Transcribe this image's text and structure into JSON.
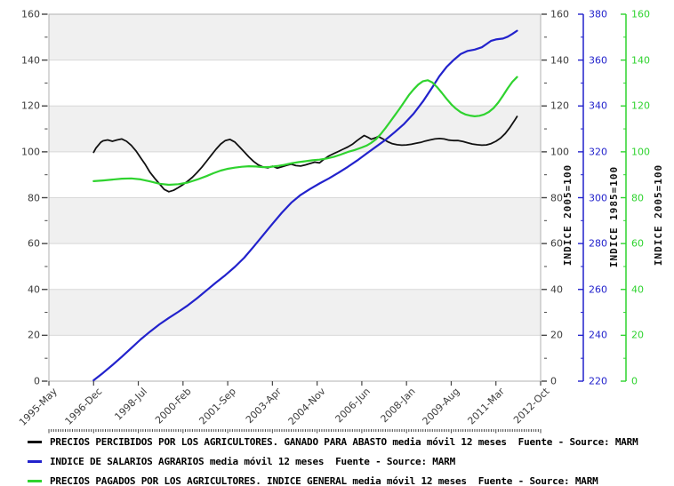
{
  "chart_data": {
    "type": "line",
    "x_axis": {
      "minor_tick_unit": "month",
      "range_months": [
        0,
        209
      ],
      "labels": [
        [
          "1995-May",
          0
        ],
        [
          "1996-Dec",
          19
        ],
        [
          "1998-Jul",
          38
        ],
        [
          "2000-Feb",
          57
        ],
        [
          "2001-Sep",
          76
        ],
        [
          "2003-Apr",
          95
        ],
        [
          "2004-Nov",
          114
        ],
        [
          "2006-Jun",
          133
        ],
        [
          "2008-Jan",
          152
        ],
        [
          "2009-Aug",
          171
        ],
        [
          "2011-Mar",
          190
        ],
        [
          "2012-Oct",
          209
        ]
      ]
    },
    "y_axes": [
      {
        "id": "left",
        "side": "left",
        "title": "",
        "min": 0,
        "max": 160,
        "ticks": [
          0,
          20,
          40,
          60,
          80,
          100,
          120,
          140,
          160
        ],
        "color": "#3c3c3c"
      },
      {
        "id": "right_black",
        "side": "right",
        "title": "INDICE 2005=100",
        "min": 0,
        "max": 160,
        "ticks": [
          0,
          20,
          40,
          60,
          80,
          100,
          120,
          140,
          160
        ],
        "color": "#3c3c3c"
      },
      {
        "id": "right_blue",
        "side": "right",
        "title": "INDICE 1985=100",
        "min": 220,
        "max": 380,
        "ticks": [
          220,
          240,
          260,
          280,
          300,
          320,
          340,
          360,
          380
        ],
        "color": "#2222cc"
      },
      {
        "id": "right_green",
        "side": "right",
        "title": "INDICE 2005=100",
        "min": 0,
        "max": 160,
        "ticks": [
          0,
          20,
          40,
          60,
          80,
          100,
          120,
          140,
          160
        ],
        "color": "#2fd32f"
      }
    ],
    "plot_style": {
      "background": "#ffffff",
      "band_color": "#f0f0f0",
      "band_ranges": [
        [
          20,
          40
        ],
        [
          60,
          80
        ],
        [
          100,
          120
        ],
        [
          140,
          160
        ]
      ],
      "grid_color": "#d8d8d8",
      "border_color": "#b0b0b0",
      "tick_color": "#444444"
    },
    "series": [
      {
        "name": "PRECIOS PERCIBIDOS POR LOS AGRICULTORES. GANADO PARA ABASTO media móvil 12 meses  Fuente - Source: MARM",
        "color": "#111111",
        "axis": "left",
        "width": 1.8,
        "points": [
          [
            19,
            99.8
          ],
          [
            20,
            101.6
          ],
          [
            21,
            102.9
          ],
          [
            22,
            104.1
          ],
          [
            23,
            104.8
          ],
          [
            25,
            105.2
          ],
          [
            27,
            104.6
          ],
          [
            29,
            105.2
          ],
          [
            31,
            105.6
          ],
          [
            33,
            104.6
          ],
          [
            35,
            102.8
          ],
          [
            37,
            100.4
          ],
          [
            39,
            97.4
          ],
          [
            41,
            94.4
          ],
          [
            43,
            91.0
          ],
          [
            45,
            88.4
          ],
          [
            47,
            86.0
          ],
          [
            49,
            83.6
          ],
          [
            51,
            82.6
          ],
          [
            53,
            83.2
          ],
          [
            55,
            84.4
          ],
          [
            57,
            85.7
          ],
          [
            59,
            87.2
          ],
          [
            61,
            88.9
          ],
          [
            63,
            91.0
          ],
          [
            65,
            93.3
          ],
          [
            67,
            95.9
          ],
          [
            69,
            98.5
          ],
          [
            71,
            101.1
          ],
          [
            73,
            103.4
          ],
          [
            75,
            104.9
          ],
          [
            77,
            105.4
          ],
          [
            79,
            104.3
          ],
          [
            81,
            102.2
          ],
          [
            83,
            100.0
          ],
          [
            85,
            97.8
          ],
          [
            87,
            95.8
          ],
          [
            89,
            94.3
          ],
          [
            91,
            93.4
          ],
          [
            93,
            93.0
          ],
          [
            95,
            93.7
          ],
          [
            97,
            92.9
          ],
          [
            99,
            93.5
          ],
          [
            101,
            94.1
          ],
          [
            103,
            94.6
          ],
          [
            105,
            94.0
          ],
          [
            107,
            93.8
          ],
          [
            109,
            94.3
          ],
          [
            111,
            94.9
          ],
          [
            113,
            95.5
          ],
          [
            115,
            95.2
          ],
          [
            117,
            96.8
          ],
          [
            119,
            98.2
          ],
          [
            121,
            99.2
          ],
          [
            123,
            100.1
          ],
          [
            125,
            101.1
          ],
          [
            127,
            102.1
          ],
          [
            129,
            103.3
          ],
          [
            131,
            104.9
          ],
          [
            133,
            106.4
          ],
          [
            134,
            107.1
          ],
          [
            136,
            106.1
          ],
          [
            137,
            105.5
          ],
          [
            139,
            106.2
          ],
          [
            140,
            106.7
          ],
          [
            142,
            105.6
          ],
          [
            144,
            104.4
          ],
          [
            146,
            103.5
          ],
          [
            148,
            103.1
          ],
          [
            150,
            102.9
          ],
          [
            152,
            103.0
          ],
          [
            154,
            103.3
          ],
          [
            156,
            103.7
          ],
          [
            158,
            104.1
          ],
          [
            160,
            104.7
          ],
          [
            162,
            105.2
          ],
          [
            164,
            105.6
          ],
          [
            166,
            105.8
          ],
          [
            168,
            105.6
          ],
          [
            170,
            105.1
          ],
          [
            172,
            104.9
          ],
          [
            174,
            104.9
          ],
          [
            176,
            104.5
          ],
          [
            178,
            103.9
          ],
          [
            180,
            103.4
          ],
          [
            182,
            103.1
          ],
          [
            184,
            102.9
          ],
          [
            186,
            103.0
          ],
          [
            188,
            103.6
          ],
          [
            190,
            104.6
          ],
          [
            192,
            106.0
          ],
          [
            194,
            108.0
          ],
          [
            196,
            110.7
          ],
          [
            198,
            113.8
          ],
          [
            199,
            115.4
          ]
        ]
      },
      {
        "name": "INDICE DE SALARIOS AGRARIOS media móvil 12 meses  Fuente - Source: MARM",
        "color": "#2222cc",
        "axis": "right_blue",
        "width": 2.2,
        "points": [
          [
            19,
            220.4
          ],
          [
            23,
            223.6
          ],
          [
            27,
            227.0
          ],
          [
            31,
            230.6
          ],
          [
            35,
            234.4
          ],
          [
            39,
            238.2
          ],
          [
            43,
            241.6
          ],
          [
            47,
            244.8
          ],
          [
            51,
            247.6
          ],
          [
            55,
            250.2
          ],
          [
            59,
            253.0
          ],
          [
            63,
            256.2
          ],
          [
            67,
            259.6
          ],
          [
            71,
            263.0
          ],
          [
            75,
            266.2
          ],
          [
            79,
            269.8
          ],
          [
            83,
            273.8
          ],
          [
            87,
            278.6
          ],
          [
            91,
            283.6
          ],
          [
            95,
            288.6
          ],
          [
            99,
            293.4
          ],
          [
            103,
            297.8
          ],
          [
            107,
            301.2
          ],
          [
            111,
            303.8
          ],
          [
            115,
            306.2
          ],
          [
            119,
            308.4
          ],
          [
            123,
            310.8
          ],
          [
            127,
            313.4
          ],
          [
            131,
            316.2
          ],
          [
            135,
            319.2
          ],
          [
            139,
            322.2
          ],
          [
            143,
            325.2
          ],
          [
            147,
            328.6
          ],
          [
            151,
            332.2
          ],
          [
            155,
            336.6
          ],
          [
            159,
            342.0
          ],
          [
            163,
            348.2
          ],
          [
            166,
            353.0
          ],
          [
            169,
            357.0
          ],
          [
            172,
            360.0
          ],
          [
            175,
            362.6
          ],
          [
            178,
            364.0
          ],
          [
            181,
            364.6
          ],
          [
            184,
            365.6
          ],
          [
            186,
            367.0
          ],
          [
            188,
            368.4
          ],
          [
            190,
            369.0
          ],
          [
            193,
            369.4
          ],
          [
            195,
            370.2
          ],
          [
            197,
            371.4
          ],
          [
            199,
            372.8
          ]
        ]
      },
      {
        "name": "PRECIOS PAGADOS POR LOS AGRICULTORES. INDICE GENERAL media móvil 12 meses  Fuente - Source: MARM",
        "color": "#2fd32f",
        "axis": "right_green",
        "width": 2.2,
        "points": [
          [
            19,
            87.2
          ],
          [
            23,
            87.5
          ],
          [
            27,
            87.9
          ],
          [
            31,
            88.3
          ],
          [
            35,
            88.4
          ],
          [
            39,
            88.0
          ],
          [
            43,
            87.1
          ],
          [
            47,
            86.1
          ],
          [
            51,
            85.6
          ],
          [
            55,
            85.9
          ],
          [
            59,
            86.6
          ],
          [
            63,
            87.9
          ],
          [
            67,
            89.4
          ],
          [
            70,
            90.7
          ],
          [
            73,
            91.8
          ],
          [
            76,
            92.6
          ],
          [
            79,
            93.1
          ],
          [
            82,
            93.5
          ],
          [
            85,
            93.7
          ],
          [
            88,
            93.6
          ],
          [
            91,
            93.3
          ],
          [
            94,
            93.4
          ],
          [
            97,
            93.8
          ],
          [
            100,
            94.3
          ],
          [
            103,
            95.0
          ],
          [
            106,
            95.5
          ],
          [
            109,
            95.9
          ],
          [
            112,
            96.3
          ],
          [
            115,
            96.6
          ],
          [
            118,
            97.1
          ],
          [
            121,
            97.8
          ],
          [
            124,
            98.8
          ],
          [
            127,
            99.9
          ],
          [
            130,
            100.8
          ],
          [
            133,
            101.9
          ],
          [
            135,
            102.7
          ],
          [
            137,
            103.9
          ],
          [
            139,
            105.5
          ],
          [
            141,
            107.7
          ],
          [
            143,
            110.3
          ],
          [
            145,
            113.1
          ],
          [
            147,
            115.9
          ],
          [
            149,
            118.7
          ],
          [
            151,
            121.7
          ],
          [
            153,
            124.7
          ],
          [
            155,
            127.2
          ],
          [
            157,
            129.3
          ],
          [
            159,
            130.8
          ],
          [
            161,
            131.2
          ],
          [
            163,
            130.2
          ],
          [
            165,
            128.2
          ],
          [
            167,
            125.7
          ],
          [
            169,
            123.1
          ],
          [
            171,
            120.7
          ],
          [
            173,
            118.8
          ],
          [
            175,
            117.3
          ],
          [
            177,
            116.3
          ],
          [
            179,
            115.8
          ],
          [
            181,
            115.5
          ],
          [
            183,
            115.7
          ],
          [
            185,
            116.3
          ],
          [
            187,
            117.4
          ],
          [
            189,
            119.1
          ],
          [
            191,
            121.5
          ],
          [
            193,
            124.5
          ],
          [
            195,
            127.7
          ],
          [
            197,
            130.5
          ],
          [
            199,
            132.6
          ]
        ]
      }
    ]
  }
}
